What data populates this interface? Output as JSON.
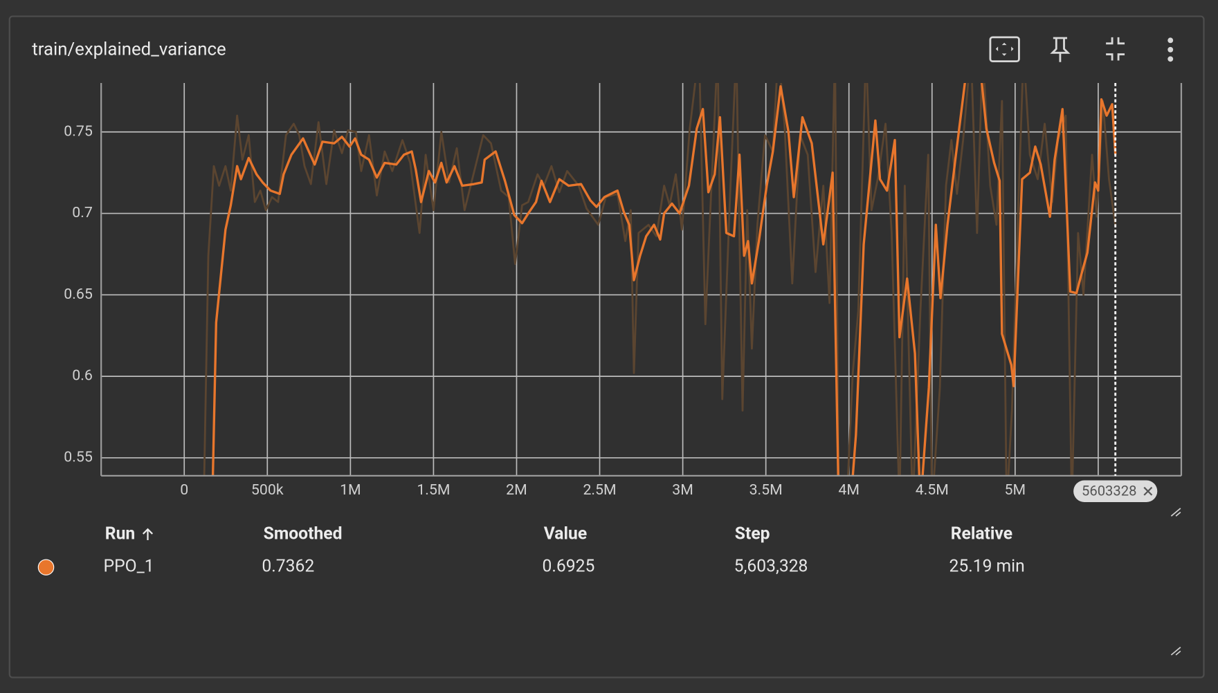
{
  "card": {
    "title": "train/explained_variance"
  },
  "chart_data": {
    "type": "line",
    "xlim": [
      -500000,
      6000000
    ],
    "xticks": [
      0,
      {
        "value": 500000,
        "label": "500k"
      },
      {
        "value": 1000000,
        "label": "1M"
      },
      {
        "value": 1500000,
        "label": "1.5M"
      },
      {
        "value": 2000000,
        "label": "2M"
      },
      {
        "value": 2500000,
        "label": "2.5M"
      },
      {
        "value": 3000000,
        "label": "3M"
      },
      {
        "value": 3500000,
        "label": "3.5M"
      },
      {
        "value": 4000000,
        "label": "4M"
      },
      {
        "value": 4500000,
        "label": "4.5M"
      },
      {
        "value": 5000000,
        "label": "5M"
      },
      {
        "value": 5500000,
        "label": "5.5M"
      }
    ],
    "ylim": [
      0.539,
      0.78
    ],
    "yticks": [
      0.55,
      0.6,
      0.65,
      0.7,
      0.75
    ],
    "grid": true,
    "cursor": {
      "value": 5603328,
      "label": "5603328"
    },
    "series": [
      {
        "name": "PPO_1",
        "color": "#e8762c",
        "raw_color": "#5b4530",
        "x": [
          117000,
          145000,
          178000,
          210000,
          248000,
          280000,
          318000,
          350000,
          388000,
          425000,
          458000,
          491000,
          528000,
          565000,
          612000,
          659000,
          692000,
          724000,
          762000,
          808000,
          855000,
          902000,
          949000,
          986000,
          1033000,
          1065000,
          1112000,
          1159000,
          1206000,
          1252000,
          1313000,
          1360000,
          1416000,
          1453000,
          1500000,
          1547000,
          1593000,
          1640000,
          1687000,
          1743000,
          1799000,
          1846000,
          1907000,
          1953000,
          1991000,
          2033000,
          2070000,
          2126000,
          2164000,
          2210000,
          2257000,
          2304000,
          2374000,
          2421000,
          2491000,
          2537000,
          2607000,
          2654000,
          2687000,
          2706000,
          2734000,
          2794000,
          2841000,
          2888000,
          2921000,
          2958000,
          2995000,
          3042000,
          3098000,
          3136000,
          3168000,
          3210000,
          3238000,
          3285000,
          3322000,
          3360000,
          3388000,
          3416000,
          3449000,
          3495000,
          3542000,
          3575000,
          3612000,
          3659000,
          3706000,
          3752000,
          3799000,
          3846000,
          3883000,
          3916000,
          3939000,
          3986000,
          4023000,
          4056000,
          4103000,
          4136000,
          4173000,
          4220000,
          4257000,
          4304000,
          4336000,
          4383000,
          4430000,
          4477000,
          4500000,
          4547000,
          4584000,
          4617000,
          4650000,
          4687000,
          4734000,
          4771000,
          4804000,
          4850000,
          4888000,
          4921000,
          4949000,
          4981000,
          5014000,
          5051000,
          5089000,
          5136000,
          5178000,
          5224000,
          5257000,
          5304000,
          5341000,
          5379000,
          5411000,
          5463000,
          5491000,
          5528000,
          5565000,
          5603328
        ],
        "values": [
          0.52,
          0.674,
          0.729,
          0.717,
          0.729,
          0.714,
          0.76,
          0.733,
          0.748,
          0.707,
          0.714,
          0.702,
          0.71,
          0.707,
          0.748,
          0.755,
          0.748,
          0.729,
          0.718,
          0.756,
          0.718,
          0.751,
          0.737,
          0.751,
          0.75,
          0.726,
          0.748,
          0.711,
          0.738,
          0.726,
          0.745,
          0.731,
          0.688,
          0.736,
          0.702,
          0.75,
          0.719,
          0.74,
          0.702,
          0.725,
          0.748,
          0.743,
          0.714,
          0.71,
          0.669,
          0.705,
          0.707,
          0.724,
          0.717,
          0.729,
          0.713,
          0.726,
          0.717,
          0.703,
          0.693,
          0.71,
          0.712,
          0.683,
          0.702,
          0.602,
          0.688,
          0.693,
          0.686,
          0.717,
          0.705,
          0.724,
          0.69,
          0.752,
          0.8,
          0.632,
          0.707,
          0.8,
          0.586,
          0.712,
          0.8,
          0.579,
          0.702,
          0.617,
          0.693,
          0.748,
          0.738,
          0.8,
          0.755,
          0.657,
          0.748,
          0.736,
          0.664,
          0.717,
          0.645,
          0.8,
          0.52,
          0.52,
          0.602,
          0.64,
          0.8,
          0.702,
          0.721,
          0.755,
          0.688,
          0.52,
          0.717,
          0.52,
          0.64,
          0.736,
          0.52,
          0.593,
          0.717,
          0.745,
          0.712,
          0.745,
          0.8,
          0.688,
          0.8,
          0.717,
          0.693,
          0.769,
          0.52,
          0.579,
          0.688,
          0.8,
          0.736,
          0.721,
          0.755,
          0.707,
          0.745,
          0.76,
          0.52,
          0.688,
          0.65,
          0.736,
          0.698,
          0.769,
          0.721,
          0.6925
        ],
        "smoothed_x": [
          168000,
          192000,
          248000,
          280000,
          318000,
          341000,
          388000,
          435000,
          472000,
          519000,
          575000,
          598000,
          645000,
          715000,
          785000,
          832000,
          902000,
          949000,
          995000,
          1028000,
          1065000,
          1112000,
          1159000,
          1206000,
          1276000,
          1322000,
          1369000,
          1393000,
          1425000,
          1472000,
          1509000,
          1547000,
          1579000,
          1626000,
          1673000,
          1743000,
          1790000,
          1808000,
          1874000,
          1930000,
          1986000,
          2033000,
          2070000,
          2117000,
          2150000,
          2201000,
          2257000,
          2313000,
          2388000,
          2444000,
          2481000,
          2528000,
          2607000,
          2645000,
          2678000,
          2706000,
          2743000,
          2780000,
          2827000,
          2864000,
          2888000,
          2935000,
          2981000,
          3037000,
          3084000,
          3121000,
          3154000,
          3192000,
          3224000,
          3262000,
          3308000,
          3341000,
          3369000,
          3393000,
          3416000,
          3458000,
          3505000,
          3542000,
          3589000,
          3636000,
          3668000,
          3720000,
          3776000,
          3846000,
          3902000,
          3939000,
          4009000,
          4042000,
          4089000,
          4159000,
          4187000,
          4229000,
          4276000,
          4304000,
          4350000,
          4397000,
          4430000,
          4481000,
          4523000,
          4551000,
          4593000,
          4640000,
          4710000,
          4780000,
          4827000,
          4874000,
          4907000,
          4921000,
          4977000,
          4991000,
          5042000,
          5089000,
          5121000,
          5154000,
          5210000,
          5238000,
          5285000,
          5332000,
          5369000,
          5397000,
          5435000,
          5481000,
          5500000,
          5519000,
          5551000,
          5584000,
          5603328
        ],
        "smoothed": [
          0.52,
          0.633,
          0.69,
          0.705,
          0.729,
          0.721,
          0.734,
          0.724,
          0.719,
          0.714,
          0.712,
          0.724,
          0.736,
          0.746,
          0.73,
          0.744,
          0.743,
          0.747,
          0.741,
          0.746,
          0.736,
          0.733,
          0.722,
          0.731,
          0.73,
          0.736,
          0.738,
          0.727,
          0.707,
          0.726,
          0.719,
          0.731,
          0.719,
          0.729,
          0.717,
          0.718,
          0.719,
          0.733,
          0.738,
          0.72,
          0.699,
          0.694,
          0.7,
          0.707,
          0.72,
          0.707,
          0.721,
          0.717,
          0.718,
          0.708,
          0.704,
          0.71,
          0.714,
          0.701,
          0.693,
          0.659,
          0.674,
          0.686,
          0.693,
          0.684,
          0.7,
          0.706,
          0.7,
          0.717,
          0.752,
          0.764,
          0.713,
          0.724,
          0.759,
          0.688,
          0.686,
          0.736,
          0.674,
          0.683,
          0.657,
          0.683,
          0.717,
          0.738,
          0.778,
          0.75,
          0.71,
          0.759,
          0.743,
          0.681,
          0.725,
          0.52,
          0.52,
          0.564,
          0.681,
          0.757,
          0.721,
          0.714,
          0.745,
          0.624,
          0.66,
          0.614,
          0.52,
          0.593,
          0.693,
          0.648,
          0.693,
          0.733,
          0.79,
          0.8,
          0.752,
          0.731,
          0.72,
          0.626,
          0.607,
          0.594,
          0.721,
          0.725,
          0.741,
          0.73,
          0.698,
          0.733,
          0.764,
          0.652,
          0.651,
          0.662,
          0.676,
          0.719,
          0.714,
          0.77,
          0.76,
          0.767,
          0.7362
        ]
      }
    ]
  },
  "table": {
    "headers": [
      "Run",
      "Smoothed",
      "Value",
      "Step",
      "Relative"
    ],
    "rows": [
      [
        "PPO_1",
        "0.7362",
        "0.6925",
        "5,603,328",
        "25.19 min"
      ]
    ]
  }
}
